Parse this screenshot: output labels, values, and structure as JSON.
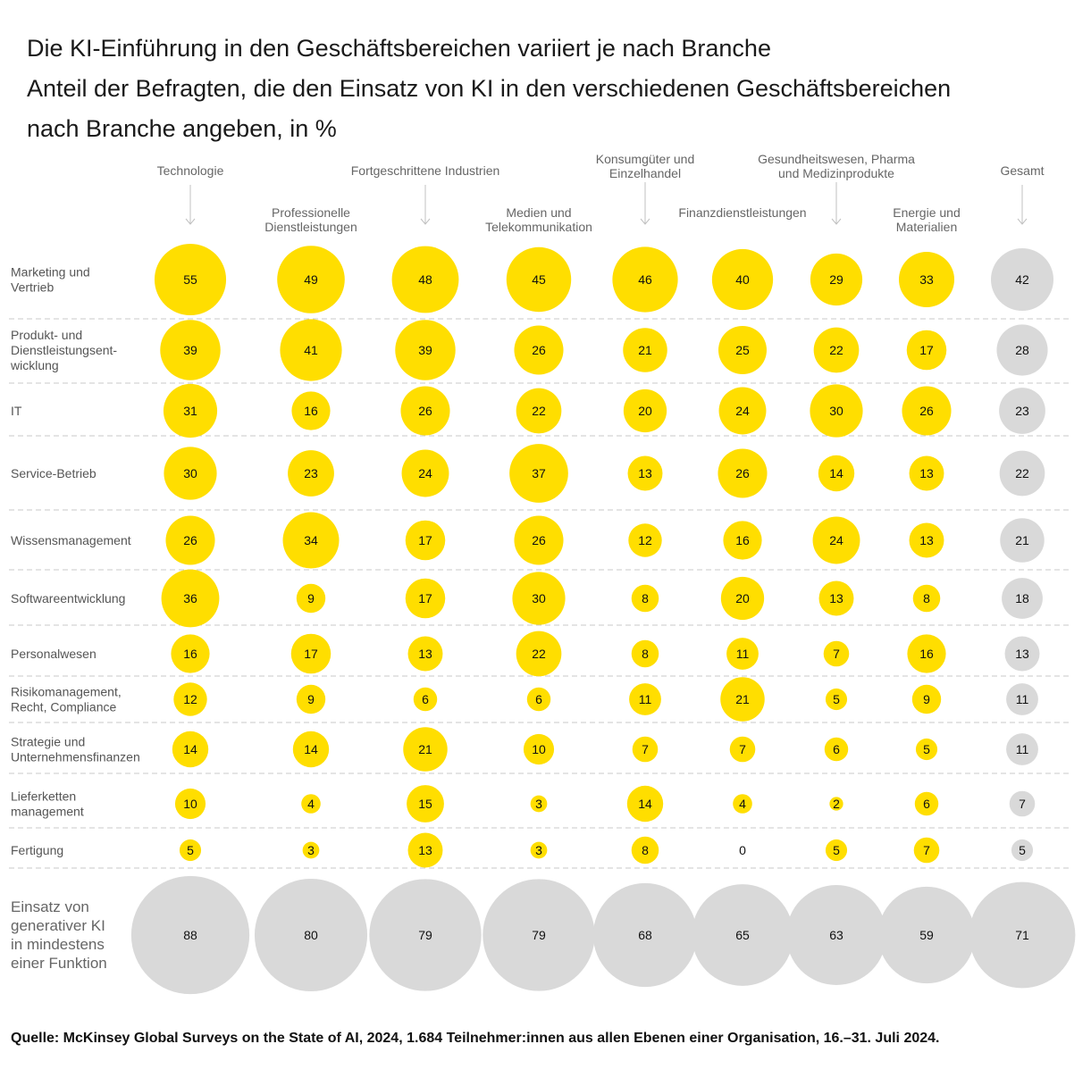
{
  "title": {
    "line1": "Die KI-Einführung in den Geschäftsbereichen variiert je nach Branche",
    "line2": "Anteil der Befragten, die den Einsatz von KI in den verschiedenen Geschäftsbereichen",
    "line3": "nach Branche angeben, in %"
  },
  "source": "Quelle: McKinsey Global Surveys on the State of AI, 2024, 1.684 Teilnehmer:innen aus allen Ebenen einer Organisation, 16.–31. Juli 2024.",
  "colors": {
    "highlight": "#FFDE00",
    "total": "#D9D9D9",
    "grid": "#C8C8C8",
    "label": "#555555"
  },
  "chart_data": {
    "type": "bubble-matrix",
    "columns": [
      {
        "name": "Technologie",
        "lines": [
          "Technologie"
        ],
        "tier": "upper"
      },
      {
        "name": "Professionelle Dienstleistungen",
        "lines": [
          "Professionelle",
          "Dienstleistungen"
        ],
        "tier": "lower"
      },
      {
        "name": "Fortgeschrittene Industrien",
        "lines": [
          "Fortgeschrittene Industrien"
        ],
        "tier": "upper"
      },
      {
        "name": "Medien und Telekommunikation",
        "lines": [
          "Medien und",
          "Telekommunikation"
        ],
        "tier": "lower"
      },
      {
        "name": "Konsumgüter und Einzelhandel",
        "lines": [
          "Konsumgüter und",
          "Einzelhandel"
        ],
        "tier": "upper"
      },
      {
        "name": "Finanzdienstleistungen",
        "lines": [
          "Finanzdienstleistungen"
        ],
        "tier": "lower"
      },
      {
        "name": "Gesundheitswesen, Pharma und Medizinprodukte",
        "lines": [
          "Gesundheitswesen, Pharma",
          "und Medizinprodukte"
        ],
        "tier": "upper"
      },
      {
        "name": "Energie und Materialien",
        "lines": [
          "Energie und",
          "Materialien"
        ],
        "tier": "lower"
      },
      {
        "name": "Gesamt",
        "lines": [
          "Gesamt"
        ],
        "tier": "upper",
        "total": true
      }
    ],
    "rows": [
      {
        "label": [
          "Marketing und",
          "Vertrieb"
        ],
        "values": [
          55,
          49,
          48,
          45,
          46,
          40,
          29,
          33,
          42
        ]
      },
      {
        "label": [
          "Produkt- und",
          "Dienstleistungsent-",
          "wicklung"
        ],
        "values": [
          39,
          41,
          39,
          26,
          21,
          25,
          22,
          17,
          28
        ]
      },
      {
        "label": [
          "IT"
        ],
        "values": [
          31,
          16,
          26,
          22,
          20,
          24,
          30,
          26,
          23
        ]
      },
      {
        "label": [
          "Service-Betrieb"
        ],
        "values": [
          30,
          23,
          24,
          37,
          13,
          26,
          14,
          13,
          22
        ]
      },
      {
        "label": [
          "Wissensmanagement"
        ],
        "values": [
          26,
          34,
          17,
          26,
          12,
          16,
          24,
          13,
          21
        ]
      },
      {
        "label": [
          "Softwareentwicklung"
        ],
        "values": [
          36,
          9,
          17,
          30,
          8,
          20,
          13,
          8,
          18
        ]
      },
      {
        "label": [
          "Personalwesen"
        ],
        "values": [
          16,
          17,
          13,
          22,
          8,
          11,
          7,
          16,
          13
        ]
      },
      {
        "label": [
          "Risikomanagement,",
          "Recht, Compliance"
        ],
        "values": [
          12,
          9,
          6,
          6,
          11,
          21,
          5,
          9,
          11
        ]
      },
      {
        "label": [
          "Strategie und",
          "Unternehmensfinanzen"
        ],
        "values": [
          14,
          14,
          21,
          10,
          7,
          7,
          6,
          5,
          11
        ]
      },
      {
        "label": [
          "Lieferketten",
          "management"
        ],
        "values": [
          10,
          4,
          15,
          3,
          14,
          4,
          2,
          6,
          7
        ]
      },
      {
        "label": [
          "Fertigung"
        ],
        "values": [
          5,
          3,
          13,
          3,
          8,
          0,
          5,
          7,
          5
        ]
      }
    ],
    "summary": {
      "label": [
        "Einsatz von",
        "generativer KI",
        "in mindestens",
        "einer Funktion"
      ],
      "values": [
        88,
        80,
        79,
        79,
        68,
        65,
        63,
        59,
        71
      ]
    }
  }
}
